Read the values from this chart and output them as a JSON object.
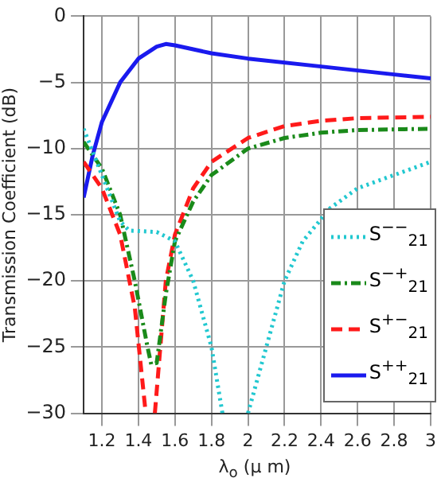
{
  "chart_data": {
    "type": "line",
    "xlabel": "λ$_{o}$ (μ m)",
    "ylabel": "Transmission Coefficient (dB)",
    "xlim": [
      1.1,
      3
    ],
    "xticks": [
      1.2,
      1.4,
      1.6,
      1.8,
      2,
      2.2,
      2.4,
      2.6,
      2.8,
      3
    ],
    "ylim": [
      -30,
      0
    ],
    "yticks": [
      -30,
      -25,
      -20,
      -15,
      -10,
      -5,
      0
    ],
    "grid": true,
    "legend": "bottom right",
    "marker": "none",
    "series": [
      {
        "name": "S$^{−−}$$_{21}$",
        "color": "#22c8d0",
        "line_style": "dotted",
        "x": [
          1.1,
          1.2,
          1.3,
          1.35,
          1.5,
          1.6,
          1.7,
          1.8,
          1.86,
          1.93,
          2.0,
          2.1,
          2.2,
          2.3,
          2.45,
          2.6,
          2.8,
          3
        ],
        "values": [
          -8.5,
          -12,
          -15.5,
          -16.2,
          -16.3,
          -17,
          -20,
          -25,
          -30,
          null,
          -30,
          -25,
          -20,
          -17,
          -14.5,
          -13,
          -12,
          -11
        ]
      },
      {
        "name": "S$^{−+}$$_{21}$",
        "color": "#1a8a1a",
        "line_style": "dashdot",
        "x": [
          1.1,
          1.2,
          1.3,
          1.38,
          1.45,
          1.47,
          1.5,
          1.55,
          1.6,
          1.7,
          1.8,
          2,
          2.2,
          2.4,
          2.6,
          3
        ],
        "values": [
          -9.5,
          -11.5,
          -15,
          -20,
          -25,
          -26.3,
          -26.2,
          -21,
          -17,
          -14,
          -12,
          -10,
          -9.2,
          -8.8,
          -8.6,
          -8.5
        ]
      },
      {
        "name": "S$^{+−}$$_{21}$",
        "color": "#ff1a1a",
        "line_style": "dashed",
        "x": [
          1.1,
          1.2,
          1.3,
          1.38,
          1.44,
          1.47,
          1.49,
          1.55,
          1.6,
          1.7,
          1.8,
          2,
          2.2,
          2.4,
          2.6,
          3
        ],
        "values": [
          -11,
          -13,
          -16.5,
          -22,
          -30,
          null,
          -30,
          -20,
          -16.5,
          -13,
          -11,
          -9.2,
          -8.3,
          -7.9,
          -7.7,
          -7.6
        ]
      },
      {
        "name": "S$^{++}$$_{21}$",
        "color": "#1a1aee",
        "line_style": "solid",
        "x": [
          1.1,
          1.15,
          1.2,
          1.3,
          1.4,
          1.5,
          1.55,
          1.6,
          1.8,
          2,
          2.4,
          2.8,
          3
        ],
        "values": [
          -13.7,
          -10.5,
          -8,
          -5,
          -3.2,
          -2.3,
          -2.1,
          -2.2,
          -2.8,
          -3.2,
          -3.8,
          -4.4,
          -4.7
        ]
      }
    ]
  }
}
